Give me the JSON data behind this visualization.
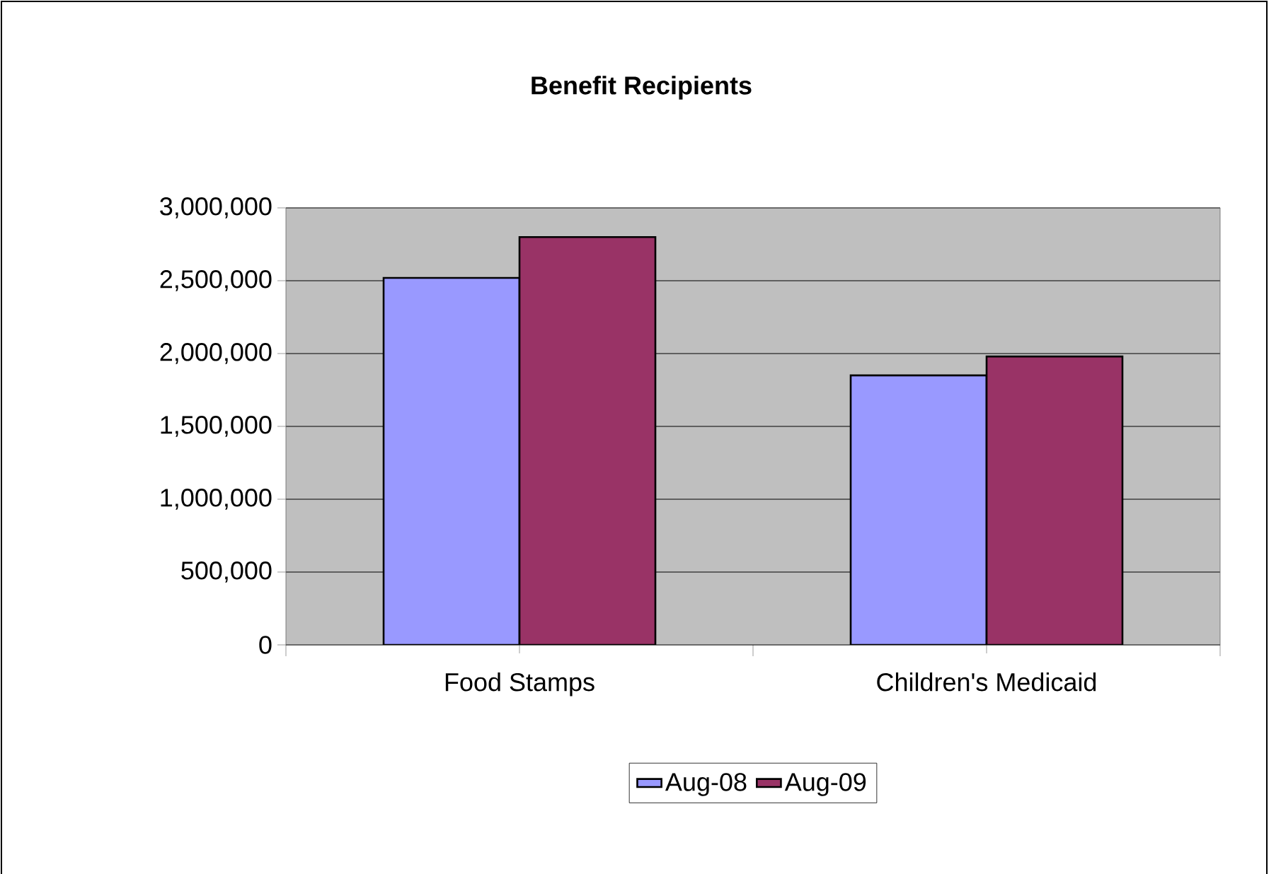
{
  "chart_data": {
    "type": "bar",
    "title": "Benefit Recipients",
    "categories": [
      "Food Stamps",
      "Children's Medicaid"
    ],
    "series": [
      {
        "name": "Aug-08",
        "color": "#9999ff",
        "values": [
          2520000,
          1850000
        ]
      },
      {
        "name": "Aug-09",
        "color": "#993366",
        "values": [
          2800000,
          1980000
        ]
      }
    ],
    "ylim": [
      0,
      3000000
    ],
    "yticks": [
      {
        "value": 0,
        "label": "0"
      },
      {
        "value": 500000,
        "label": "500,000"
      },
      {
        "value": 1000000,
        "label": "1,000,000"
      },
      {
        "value": 1500000,
        "label": "1,500,000"
      },
      {
        "value": 2000000,
        "label": "2,000,000"
      },
      {
        "value": 2500000,
        "label": "2,500,000"
      },
      {
        "value": 3000000,
        "label": "3,000,000"
      }
    ],
    "grid": "y",
    "legend": "bottom"
  }
}
